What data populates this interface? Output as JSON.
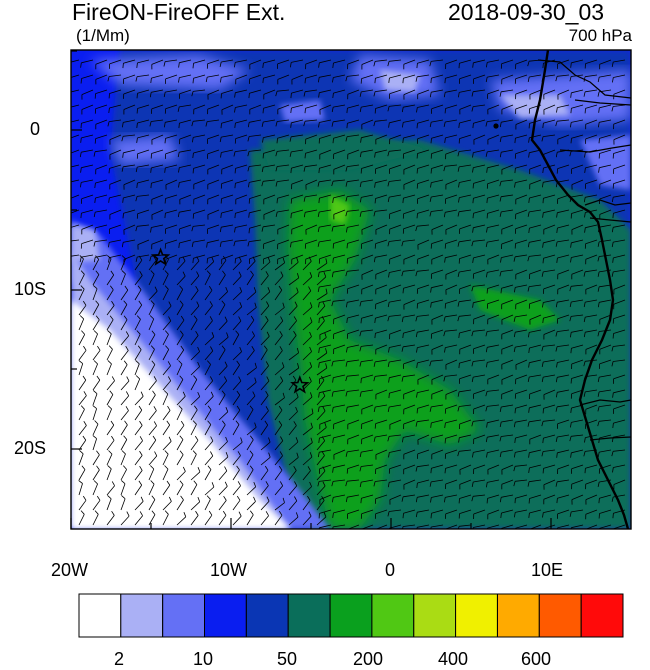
{
  "map": {
    "title_left": "FireON-FireOFF Ext.",
    "title_right": "2018-09-30_03",
    "units": "(1/Mm)",
    "level": "700 hPa",
    "lon_labels": [
      "20W",
      "10W",
      "0",
      "10E"
    ],
    "lat_labels": [
      "0",
      "10S",
      "20S"
    ],
    "extent": {
      "lon_min": -20,
      "lon_max": 15,
      "lat_min": -25,
      "lat_max": 5
    },
    "markers": [
      {
        "name": "site-star-north",
        "lon": -14.4,
        "lat": -8.0
      },
      {
        "name": "site-star-south",
        "lon": -5.7,
        "lat": -16.0
      }
    ]
  },
  "colorbar": {
    "colors": [
      "#ffffff",
      "#aab0f5",
      "#6470f5",
      "#0a1ef0",
      "#0a36b4",
      "#0a6e5a",
      "#0aa01e",
      "#50c814",
      "#aadc14",
      "#f0f000",
      "#ffaa00",
      "#ff5a00",
      "#ff0a0a"
    ],
    "labels": [
      "2",
      "10",
      "50",
      "200",
      "400",
      "600"
    ]
  }
}
